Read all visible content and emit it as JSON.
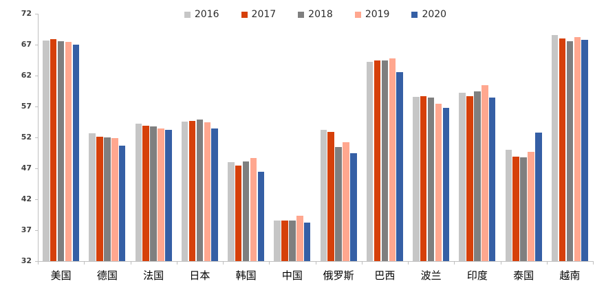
{
  "chart_data": {
    "type": "bar",
    "title": "",
    "xlabel": "",
    "ylabel": "",
    "categories": [
      "美国",
      "德国",
      "法国",
      "日本",
      "韩国",
      "中国",
      "俄罗斯",
      "巴西",
      "波兰",
      "印度",
      "泰国",
      "越南"
    ],
    "series": [
      {
        "name": "2016",
        "color": "#c6c6c6",
        "values": [
          67.7,
          52.7,
          54.2,
          54.6,
          48.0,
          38.6,
          53.2,
          64.2,
          58.6,
          59.2,
          50.0,
          68.6
        ]
      },
      {
        "name": "2017",
        "color": "#d6400a",
        "values": [
          67.9,
          52.1,
          53.9,
          54.7,
          47.5,
          38.6,
          52.9,
          64.4,
          58.7,
          58.7,
          48.9,
          68.0
        ]
      },
      {
        "name": "2018",
        "color": "#7f7f7f",
        "values": [
          67.6,
          52.0,
          53.8,
          54.9,
          48.1,
          38.6,
          50.4,
          64.5,
          58.4,
          59.4,
          48.8,
          67.6
        ]
      },
      {
        "name": "2019",
        "color": "#ffa78f",
        "values": [
          67.4,
          51.9,
          53.5,
          54.4,
          48.7,
          39.3,
          51.2,
          64.8,
          57.4,
          60.4,
          49.7,
          68.2
        ]
      },
      {
        "name": "2020",
        "color": "#355fa5",
        "values": [
          67.0,
          50.7,
          53.2,
          53.4,
          46.5,
          38.2,
          49.5,
          62.6,
          56.8,
          58.5,
          52.8,
          67.8
        ]
      }
    ],
    "ylim": [
      32,
      72
    ],
    "yticks": [
      32,
      37,
      42,
      47,
      52,
      57,
      62,
      67,
      72
    ],
    "grid": false,
    "legend_position": "top-center",
    "axis_color": "#bfbfbf"
  }
}
